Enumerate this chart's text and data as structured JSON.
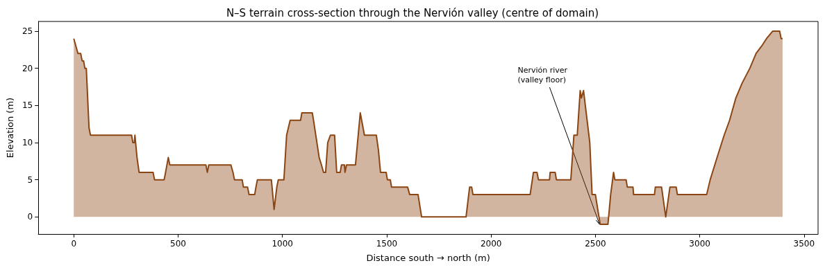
{
  "chart_data": {
    "type": "area",
    "title": "N–S terrain cross-section through the Nervión valley (centre of domain)",
    "xlabel": "Distance south → north (m)",
    "ylabel": "Elevation (m)",
    "x": [
      0,
      10,
      20,
      33,
      40,
      47,
      53,
      60,
      73,
      80,
      277,
      283,
      290,
      293,
      303,
      313,
      380,
      387,
      433,
      440,
      453,
      460,
      633,
      640,
      647,
      753,
      763,
      770,
      807,
      813,
      833,
      840,
      867,
      873,
      880,
      947,
      960,
      973,
      980,
      1007,
      1020,
      1037,
      1087,
      1093,
      1143,
      1149,
      1176,
      1187,
      1197,
      1207,
      1217,
      1230,
      1250,
      1260,
      1277,
      1283,
      1297,
      1300,
      1307,
      1350,
      1373,
      1393,
      1450,
      1460,
      1470,
      1497,
      1503,
      1517,
      1523,
      1600,
      1610,
      1650,
      1667,
      1880,
      1897,
      1907,
      1913,
      2187,
      2203,
      2220,
      2227,
      2280,
      2283,
      2307,
      2313,
      2382,
      2397,
      2413,
      2427,
      2433,
      2443,
      2473,
      2484,
      2500,
      2517,
      2523,
      2560,
      2573,
      2587,
      2593,
      2647,
      2653,
      2680,
      2683,
      2783,
      2787,
      2817,
      2837,
      2857,
      2887,
      2893,
      3033,
      3050,
      3083,
      3117,
      3143,
      3173,
      3203,
      3240,
      3270,
      3297,
      3320,
      3350,
      3383,
      3390,
      3397
    ],
    "series": [
      {
        "color": "#8b4513",
        "values": [
          24,
          23,
          22,
          22,
          21,
          21,
          20,
          20,
          12,
          11,
          11,
          10,
          10,
          11,
          8,
          6,
          6,
          5,
          5,
          6,
          8,
          7,
          7,
          6,
          7,
          7,
          6,
          5,
          5,
          4,
          4,
          3,
          3,
          4,
          5,
          5,
          1,
          4,
          5,
          5,
          11,
          13,
          13,
          14,
          14,
          13,
          8,
          7,
          6,
          6,
          10,
          11,
          11,
          6,
          6,
          7,
          7,
          6,
          7,
          7,
          14,
          11,
          11,
          9,
          6,
          6,
          5,
          5,
          4,
          4,
          3,
          3,
          0,
          0,
          4,
          4,
          3,
          3,
          6,
          6,
          5,
          5,
          6,
          6,
          5,
          5,
          11,
          11,
          17,
          16,
          17,
          10,
          3,
          3,
          0,
          -1,
          -1,
          3,
          6,
          5,
          5,
          4,
          4,
          3,
          3,
          4,
          4,
          0,
          4,
          4,
          3,
          3,
          5,
          8,
          11,
          13,
          16,
          18,
          20,
          22,
          23,
          24,
          25,
          25,
          24,
          24
        ]
      }
    ],
    "xlim": [
      -170,
      3567
    ],
    "ylim": [
      -2.3,
      26.3
    ],
    "xticks": [
      0,
      500,
      1000,
      1500,
      2000,
      2500,
      3000,
      3500
    ],
    "yticks": [
      0,
      5,
      10,
      15,
      20,
      25
    ],
    "grid": false,
    "annotations": [
      {
        "text": "Nervión river\n(valley floor)",
        "x": 2520,
        "y": -1
      }
    ]
  }
}
